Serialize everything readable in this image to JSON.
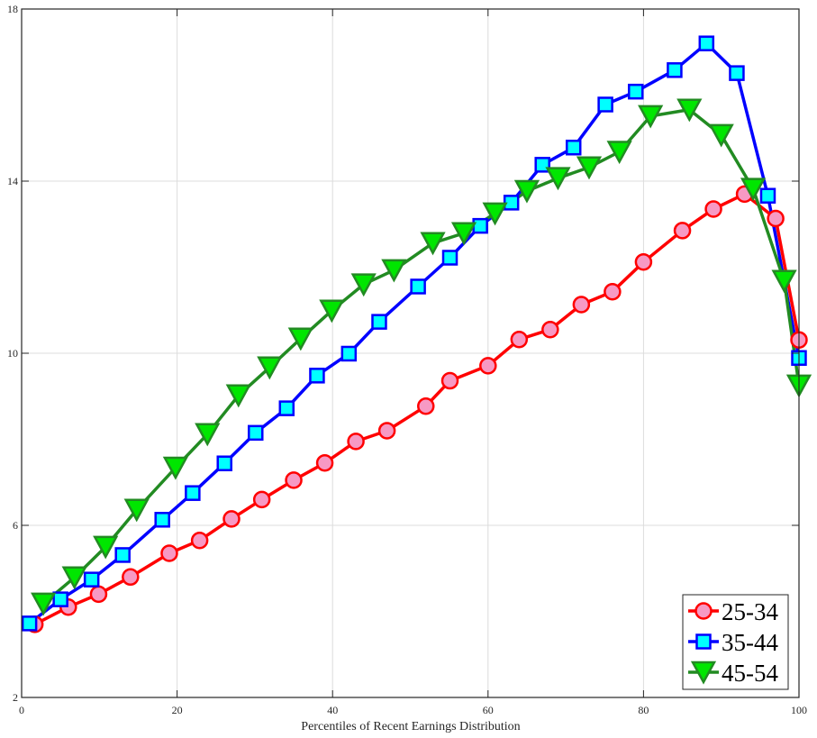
{
  "chart_data": {
    "type": "line",
    "title": "",
    "xlabel": "Percentiles of Recent Earnings Distribution",
    "ylabel": "",
    "xlim": [
      0,
      100
    ],
    "ylim": [
      2,
      18
    ],
    "xticks": [
      0,
      20,
      40,
      60,
      80,
      100
    ],
    "yticks": [
      2,
      6,
      10,
      14,
      18
    ],
    "grid": true,
    "legend_position": "lower right",
    "series": [
      {
        "name": "25-34",
        "color": "#ff0000",
        "marker": "circle",
        "marker_fill": "#f799c4",
        "x": [
          1.7,
          6.0,
          9.9,
          14.0,
          19.0,
          22.9,
          27.0,
          30.9,
          35.0,
          39.0,
          43.0,
          47.0,
          52.0,
          55.1,
          60.0,
          64.0,
          68.0,
          72.0,
          76.0,
          80.0,
          85.0,
          89.0,
          93.0,
          97.0,
          100.0
        ],
        "y": [
          3.7,
          4.1,
          4.4,
          4.8,
          5.35,
          5.65,
          6.15,
          6.6,
          7.05,
          7.45,
          7.95,
          8.2,
          8.77,
          9.36,
          9.71,
          10.32,
          10.55,
          11.13,
          11.43,
          12.12,
          12.85,
          13.35,
          13.7,
          13.13,
          10.31
        ]
      },
      {
        "name": "35-44",
        "color": "#0000ff",
        "marker": "square",
        "marker_fill": "#00ffff",
        "x": [
          1.0,
          5.0,
          9.0,
          13.0,
          18.1,
          22.0,
          26.1,
          30.1,
          34.1,
          38.0,
          42.1,
          46.0,
          51.0,
          55.1,
          59.0,
          63.0,
          67.0,
          71.0,
          75.1,
          79.0,
          84.0,
          88.1,
          92.0,
          96.0,
          100.0
        ],
        "y": [
          3.72,
          4.28,
          4.74,
          5.31,
          6.13,
          6.75,
          7.44,
          8.15,
          8.72,
          9.48,
          9.99,
          10.73,
          11.55,
          12.22,
          12.96,
          13.5,
          14.38,
          14.78,
          15.78,
          16.08,
          16.58,
          17.2,
          16.51,
          13.66,
          9.89
        ]
      },
      {
        "name": "45-54",
        "color": "#228b22",
        "marker": "triangle-down",
        "marker_fill": "#00e600",
        "x": [
          2.8,
          6.8,
          10.8,
          14.8,
          19.8,
          23.9,
          27.9,
          31.9,
          35.9,
          39.9,
          44.0,
          47.9,
          52.9,
          56.9,
          60.9,
          65.0,
          69.0,
          73.0,
          76.9,
          80.9,
          85.9,
          90.0,
          94.1,
          98.1,
          100.0
        ],
        "y": [
          4.18,
          4.79,
          5.5,
          6.36,
          7.34,
          8.12,
          9.02,
          9.67,
          10.34,
          10.99,
          11.6,
          11.93,
          12.56,
          12.79,
          13.25,
          13.77,
          14.07,
          14.32,
          14.68,
          15.51,
          15.66,
          15.07,
          13.82,
          11.68,
          9.25
        ]
      }
    ]
  },
  "legend": {
    "items": [
      {
        "label": "25-34"
      },
      {
        "label": "35-44"
      },
      {
        "label": "45-54"
      }
    ]
  },
  "axes": {
    "xlabel": "Percentiles of Recent Earnings Distribution",
    "xtick_labels": [
      "0",
      "20",
      "40",
      "60",
      "80",
      "100"
    ],
    "ytick_labels": [
      "2",
      "6",
      "10",
      "14",
      "18"
    ]
  }
}
